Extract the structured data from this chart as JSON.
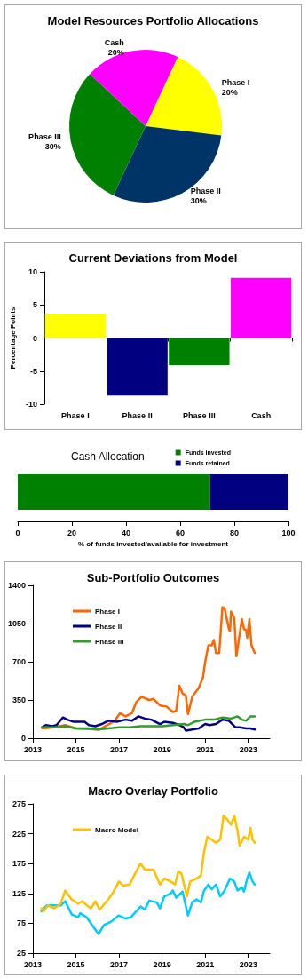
{
  "chart_data": [
    {
      "type": "pie",
      "title": "Model Resources Portfolio Allocations",
      "categories": [
        "Phase I",
        "Phase II",
        "Phase III",
        "Cash"
      ],
      "values": [
        20,
        30,
        30,
        20
      ],
      "colors": [
        "#ffff00",
        "#003366",
        "#008000",
        "#ff00ff"
      ],
      "value_labels": [
        "20%",
        "30%",
        "30%",
        "20%"
      ],
      "legend": false
    },
    {
      "type": "bar",
      "title": "Current Deviations from Model",
      "ylabel": "Percentage Points",
      "categories": [
        "Phase I",
        "Phase II",
        "Phase III",
        "Cash"
      ],
      "values": [
        3.7,
        -8.7,
        -4.1,
        9.1
      ],
      "colors": [
        "#ffff00",
        "#000080",
        "#008000",
        "#ff00ff"
      ],
      "ylim": [
        -10,
        10
      ],
      "yticks": [
        -10,
        -5,
        0,
        5,
        10
      ],
      "legend": false
    },
    {
      "type": "bar",
      "title": "Cash Allocation",
      "xlabel": "% of funds invested/available for investment",
      "orientation": "horizontal",
      "stacked": true,
      "categories": [
        null
      ],
      "series": [
        {
          "name": "Funds invested",
          "color": "#008000",
          "values": [
            71
          ]
        },
        {
          "name": "Funds retained",
          "color": "#000080",
          "values": [
            29
          ]
        }
      ],
      "xlim": [
        0,
        100
      ],
      "xticks": [
        0,
        20,
        40,
        60,
        80,
        100
      ],
      "tick_labels": "x",
      "legend": "top right"
    },
    {
      "type": "line",
      "title": "Sub-Portfolio Outcomes",
      "marker": "none",
      "legend": "top left",
      "xlim": [
        2013,
        2024
      ],
      "xticks": [
        2013,
        2015,
        2017,
        2019,
        2021,
        2023
      ],
      "ylim": [
        0,
        1400
      ],
      "yticks": [
        0,
        350,
        700,
        1050,
        1400
      ],
      "series": [
        {
          "name": "Phase I",
          "color": "#ff6600",
          "x": [
            2013.43,
            2014.0,
            2014.5,
            2015.0,
            2016.1,
            2016.8,
            2017.05,
            2017.3,
            2017.6,
            2017.8,
            2018.05,
            2018.4,
            2018.6,
            2018.9,
            2019.2,
            2019.5,
            2019.65,
            2019.8,
            2019.95,
            2020.1,
            2020.2,
            2020.4,
            2020.7,
            2020.9,
            2021.0,
            2021.15,
            2021.3,
            2021.4,
            2021.5,
            2021.65,
            2021.8,
            2021.9,
            2022.1,
            2022.15,
            2022.2,
            2022.35,
            2022.45,
            2022.7,
            2022.8,
            2022.9,
            2022.95,
            2023.05,
            2023.15,
            2023.3
          ],
          "values": [
            90,
            100,
            120,
            90,
            80,
            160,
            230,
            200,
            230,
            330,
            380,
            350,
            360,
            300,
            290,
            240,
            250,
            480,
            410,
            390,
            220,
            380,
            460,
            560,
            700,
            850,
            850,
            900,
            780,
            780,
            1200,
            1190,
            1000,
            980,
            1160,
            1100,
            750,
            1090,
            1000,
            990,
            920,
            1090,
            850,
            780
          ]
        },
        {
          "name": "Phase II",
          "color": "#000080",
          "x": [
            2013.43,
            2013.6,
            2013.9,
            2014.1,
            2014.4,
            2014.6,
            2014.9,
            2015.2,
            2015.4,
            2015.6,
            2015.9,
            2016.2,
            2016.5,
            2016.9,
            2017.3,
            2017.6,
            2017.9,
            2018.2,
            2018.5,
            2018.9,
            2019.1,
            2019.5,
            2019.8,
            2020.0,
            2020.1,
            2020.4,
            2020.7,
            2021.0,
            2021.2,
            2021.5,
            2021.8,
            2022.1,
            2022.4,
            2022.6,
            2022.9,
            2023.1,
            2023.3
          ],
          "values": [
            100,
            120,
            110,
            120,
            190,
            170,
            150,
            150,
            150,
            120,
            110,
            130,
            160,
            150,
            170,
            160,
            200,
            180,
            170,
            130,
            150,
            140,
            120,
            100,
            70,
            80,
            90,
            130,
            120,
            130,
            170,
            160,
            100,
            100,
            90,
            90,
            80
          ]
        },
        {
          "name": "Phase III",
          "color": "#339933",
          "x": [
            2013.43,
            2014.0,
            2014.5,
            2015.0,
            2015.6,
            2016.0,
            2016.5,
            2017.0,
            2017.5,
            2018.0,
            2018.5,
            2019.0,
            2019.5,
            2020.0,
            2020.2,
            2020.5,
            2021.0,
            2021.4,
            2021.8,
            2022.2,
            2022.5,
            2022.7,
            2022.9,
            2023.1,
            2023.3
          ],
          "values": [
            100,
            100,
            110,
            90,
            90,
            80,
            90,
            100,
            100,
            110,
            110,
            110,
            120,
            130,
            120,
            150,
            170,
            170,
            190,
            180,
            200,
            170,
            160,
            200,
            200
          ]
        }
      ]
    },
    {
      "type": "line",
      "title": "Macro Overlay Portfolio",
      "marker": "none",
      "legend": "top left",
      "xlim": [
        2013,
        2024
      ],
      "xticks": [
        2013,
        2015,
        2017,
        2019,
        2021,
        2023
      ],
      "ylim": [
        25,
        275
      ],
      "yticks": [
        25,
        75,
        125,
        175,
        225,
        275
      ],
      "series": [
        {
          "color": "#00ccff",
          "x": [
            2013.4,
            2013.65,
            2014.3,
            2014.5,
            2014.8,
            2015.1,
            2015.2,
            2015.5,
            2015.75,
            2016.05,
            2016.3,
            2016.65,
            2016.98,
            2017.3,
            2017.55,
            2018.0,
            2018.2,
            2018.4,
            2018.75,
            2018.9,
            2019.1,
            2019.4,
            2019.5,
            2019.65,
            2019.95,
            2020.2,
            2020.4,
            2020.6,
            2020.8,
            2020.95,
            2021.15,
            2021.3,
            2021.5,
            2021.7,
            2021.9,
            2022.15,
            2022.35,
            2022.5,
            2022.7,
            2022.8,
            2022.95,
            2023.05,
            2023.2,
            2023.3
          ],
          "values": [
            95,
            105,
            105,
            112,
            90,
            85,
            92,
            85,
            72,
            57,
            72,
            78,
            88,
            83,
            85,
            103,
            98,
            113,
            110,
            100,
            120,
            125,
            130,
            118,
            128,
            88,
            110,
            115,
            110,
            130,
            140,
            132,
            140,
            120,
            130,
            150,
            145,
            130,
            135,
            128,
            150,
            160,
            145,
            140
          ]
        },
        {
          "name": "Macro Model",
          "color": "#ffc000",
          "x": [
            2013.4,
            2013.5,
            2013.7,
            2014.0,
            2014.3,
            2014.5,
            2014.8,
            2015.1,
            2015.3,
            2015.5,
            2015.7,
            2015.9,
            2016.1,
            2016.5,
            2016.7,
            2017.0,
            2017.2,
            2017.5,
            2017.7,
            2018.0,
            2018.2,
            2018.6,
            2018.9,
            2019.1,
            2019.4,
            2019.6,
            2019.75,
            2019.9,
            2020.15,
            2020.3,
            2020.6,
            2020.8,
            2020.95,
            2021.1,
            2021.3,
            2021.5,
            2021.7,
            2021.85,
            2022.0,
            2022.2,
            2022.35,
            2022.5,
            2022.6,
            2022.8,
            2023.0,
            2023.1,
            2023.2,
            2023.3
          ],
          "values": [
            100,
            95,
            105,
            100,
            108,
            130,
            115,
            108,
            112,
            105,
            100,
            112,
            98,
            115,
            125,
            145,
            138,
            140,
            155,
            175,
            165,
            165,
            140,
            150,
            145,
            140,
            162,
            158,
            120,
            145,
            150,
            155,
            195,
            220,
            215,
            210,
            215,
            255,
            250,
            240,
            255,
            230,
            205,
            220,
            215,
            235,
            215,
            210
          ]
        }
      ]
    }
  ]
}
